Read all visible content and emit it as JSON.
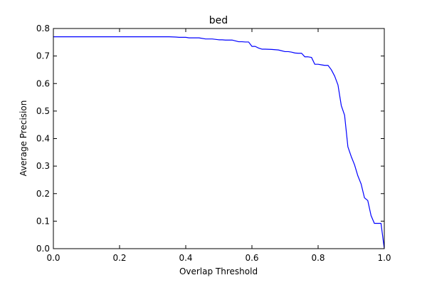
{
  "chart_data": {
    "type": "line",
    "title": "bed",
    "xlabel": "Overlap Threshold",
    "ylabel": "Average Precision",
    "xlim": [
      0.0,
      1.0
    ],
    "ylim": [
      0.0,
      0.8
    ],
    "x_ticks": [
      "0.0",
      "0.2",
      "0.4",
      "0.6",
      "0.8",
      "1.0"
    ],
    "y_ticks": [
      "0.0",
      "0.1",
      "0.2",
      "0.3",
      "0.4",
      "0.5",
      "0.6",
      "0.7",
      "0.8"
    ],
    "grid": false,
    "series": [
      {
        "color": "#0000ff",
        "x": [
          0.0,
          0.05,
          0.1,
          0.15,
          0.2,
          0.25,
          0.3,
          0.35,
          0.37,
          0.38,
          0.4,
          0.41,
          0.42,
          0.44,
          0.46,
          0.47,
          0.48,
          0.5,
          0.51,
          0.52,
          0.54,
          0.56,
          0.57,
          0.58,
          0.59,
          0.6,
          0.61,
          0.62,
          0.63,
          0.64,
          0.66,
          0.68,
          0.7,
          0.71,
          0.72,
          0.73,
          0.74,
          0.75,
          0.76,
          0.77,
          0.78,
          0.79,
          0.8,
          0.81,
          0.82,
          0.83,
          0.84,
          0.85,
          0.86,
          0.87,
          0.88,
          0.89,
          0.9,
          0.91,
          0.92,
          0.93,
          0.94,
          0.95,
          0.96,
          0.97,
          0.98,
          0.99,
          1.0
        ],
        "y": [
          0.77,
          0.77,
          0.77,
          0.77,
          0.77,
          0.77,
          0.77,
          0.77,
          0.769,
          0.768,
          0.768,
          0.766,
          0.766,
          0.766,
          0.762,
          0.762,
          0.762,
          0.759,
          0.759,
          0.758,
          0.758,
          0.752,
          0.752,
          0.751,
          0.751,
          0.735,
          0.735,
          0.729,
          0.725,
          0.725,
          0.724,
          0.722,
          0.716,
          0.716,
          0.714,
          0.711,
          0.71,
          0.71,
          0.697,
          0.697,
          0.695,
          0.67,
          0.67,
          0.668,
          0.666,
          0.666,
          0.65,
          0.627,
          0.595,
          0.52,
          0.485,
          0.37,
          0.335,
          0.305,
          0.265,
          0.235,
          0.185,
          0.175,
          0.12,
          0.092,
          0.092,
          0.092,
          0.0
        ]
      }
    ]
  }
}
